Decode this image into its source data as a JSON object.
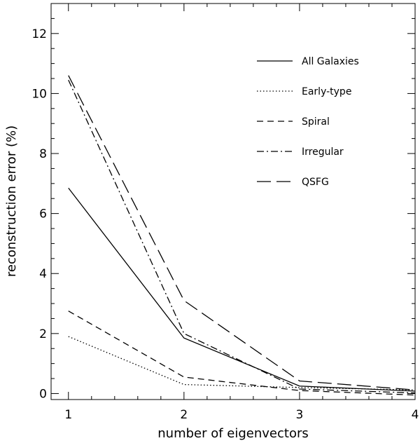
{
  "chart_data": {
    "type": "line",
    "title": "",
    "xlabel": "number of eigenvectors",
    "ylabel": "reconstruction error (%)",
    "xlim": [
      0.85,
      4.0
    ],
    "ylim": [
      -0.2,
      13.0
    ],
    "xticks": [
      1,
      2,
      3,
      4
    ],
    "yticks": [
      0,
      2,
      4,
      6,
      8,
      10,
      12
    ],
    "x_minor_step": 0.2,
    "y_minor_step": 0.5,
    "legend_position": "top-right",
    "series": [
      {
        "name": "All Galaxies",
        "dash": "solid",
        "x": [
          1,
          2,
          3,
          4
        ],
        "values": [
          6.85,
          1.85,
          0.25,
          0.08
        ]
      },
      {
        "name": "Early-type",
        "dash": "dotted",
        "x": [
          1,
          2,
          3,
          4
        ],
        "values": [
          1.9,
          0.3,
          0.2,
          0.12
        ]
      },
      {
        "name": "Spiral",
        "dash": "dashed",
        "x": [
          1,
          2,
          3,
          4
        ],
        "values": [
          2.75,
          0.55,
          0.1,
          -0.05
        ]
      },
      {
        "name": "Irregular",
        "dash": "dashdot",
        "x": [
          1,
          2,
          3,
          4
        ],
        "values": [
          10.45,
          2.0,
          0.15,
          0.02
        ]
      },
      {
        "name": "QSFG",
        "dash": "longdash",
        "x": [
          1,
          2,
          3,
          4
        ],
        "values": [
          10.6,
          3.1,
          0.42,
          0.12
        ]
      }
    ]
  }
}
